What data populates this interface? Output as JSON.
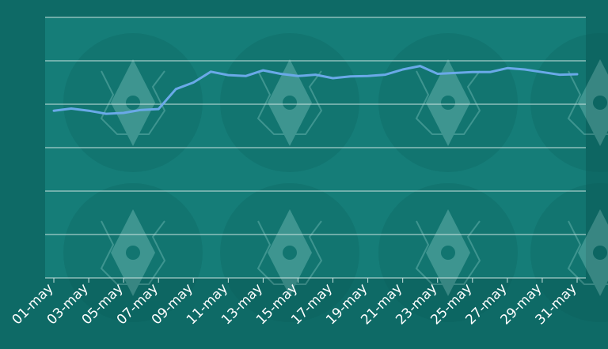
{
  "colors": {
    "background": "#0e6a66",
    "plot_area": "#157d78",
    "grid": "#c9e2df",
    "line": "#6aa9e8",
    "tick_text": "#ffffff"
  },
  "decor": {
    "watermark": "crystal-gear-watermark"
  },
  "chart_data": {
    "type": "line",
    "title": "",
    "xlabel": "",
    "ylabel": "",
    "y_tick_labels_visible": false,
    "grid": true,
    "legend": "none",
    "categories": [
      "01-may",
      "02-may",
      "03-may",
      "04-may",
      "05-may",
      "06-may",
      "07-may",
      "08-may",
      "09-may",
      "10-may",
      "11-may",
      "12-may",
      "13-may",
      "14-may",
      "15-may",
      "16-may",
      "17-may",
      "18-may",
      "19-may",
      "20-may",
      "21-may",
      "22-may",
      "23-may",
      "24-may",
      "25-may",
      "26-may",
      "27-may",
      "28-may",
      "29-may",
      "30-may",
      "31-may"
    ],
    "x_tick_labels": [
      "01-may",
      "03-may",
      "05-may",
      "07-may",
      "09-may",
      "11-may",
      "13-may",
      "15-may",
      "17-may",
      "19-may",
      "21-may",
      "23-may",
      "25-may",
      "27-may",
      "29-may",
      "31-may"
    ],
    "ylim": [
      0,
      6
    ],
    "y_gridlines": [
      1,
      2,
      3,
      4,
      5,
      6
    ],
    "series": [
      {
        "values": [
          3.85,
          3.9,
          3.85,
          3.78,
          3.8,
          3.87,
          3.89,
          4.35,
          4.5,
          4.75,
          4.67,
          4.65,
          4.78,
          4.7,
          4.65,
          4.68,
          4.6,
          4.64,
          4.65,
          4.68,
          4.8,
          4.88,
          4.7,
          4.72,
          4.74,
          4.74,
          4.83,
          4.8,
          4.74,
          4.68,
          4.69
        ]
      }
    ]
  }
}
